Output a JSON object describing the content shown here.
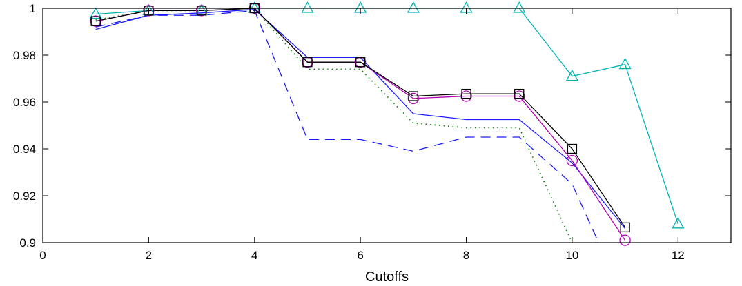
{
  "chart_data": {
    "type": "line",
    "title": "",
    "xlabel": "Cutoffs",
    "ylabel": "",
    "xlim": [
      0,
      13
    ],
    "ylim": [
      0.9,
      1.0
    ],
    "xticks": [
      0,
      2,
      4,
      6,
      8,
      10,
      12
    ],
    "xtick_labels": [
      "0",
      "2",
      "4",
      "6",
      "8",
      "10",
      "12"
    ],
    "yticks": [
      0.9,
      0.92,
      0.94,
      0.96,
      0.98,
      1.0
    ],
    "ytick_labels": [
      "0.9",
      "0.92",
      "0.94",
      "0.96",
      "0.98",
      "1"
    ],
    "grid": false,
    "legend": "none",
    "series": [
      {
        "color": "#1a1aff",
        "line": "dashed",
        "marker": "none",
        "x": [
          1,
          2,
          3,
          4,
          5,
          6,
          7,
          8,
          9,
          10,
          10.5
        ],
        "y": [
          0.992,
          0.997,
          0.997,
          0.999,
          0.944,
          0.944,
          0.939,
          0.945,
          0.945,
          0.925,
          0.9
        ]
      },
      {
        "color": "#008000",
        "line": "dotted",
        "marker": "none",
        "x": [
          1,
          2,
          3,
          4,
          5,
          6,
          7,
          8,
          9,
          10
        ],
        "y": [
          0.995,
          0.999,
          0.999,
          1.0,
          0.974,
          0.974,
          0.951,
          0.949,
          0.949,
          0.9
        ]
      },
      {
        "color": "#1a1aff",
        "line": "solid",
        "marker": "none",
        "x": [
          1,
          2,
          3,
          4,
          5,
          6,
          7,
          8,
          9,
          10,
          11
        ],
        "y": [
          0.991,
          0.997,
          0.998,
          0.9995,
          0.979,
          0.979,
          0.955,
          0.9525,
          0.9525,
          0.934,
          0.906
        ]
      },
      {
        "color": "#00b3b3",
        "line": "solid",
        "marker": "triangle",
        "x": [
          1,
          2,
          3,
          4,
          5,
          6,
          7,
          8,
          9,
          10,
          11,
          12
        ],
        "y": [
          0.9975,
          0.999,
          0.999,
          1.0,
          1.0,
          1.0,
          1.0,
          1.0,
          1.0,
          0.971,
          0.976,
          0.908
        ]
      },
      {
        "color": "#b300b3",
        "line": "solid",
        "marker": "circle",
        "x": [
          1,
          2,
          3,
          4,
          5,
          6,
          7,
          8,
          9,
          10,
          11
        ],
        "y": [
          0.9945,
          0.999,
          0.999,
          1.0,
          0.977,
          0.977,
          0.9615,
          0.9625,
          0.9625,
          0.935,
          0.901
        ]
      },
      {
        "color": "#000000",
        "line": "solid",
        "marker": "square",
        "x": [
          1,
          2,
          3,
          4,
          5,
          6,
          7,
          8,
          9,
          10,
          11
        ],
        "y": [
          0.9945,
          0.999,
          0.999,
          1.0,
          0.977,
          0.977,
          0.9625,
          0.9635,
          0.9635,
          0.94,
          0.9065
        ]
      }
    ]
  }
}
